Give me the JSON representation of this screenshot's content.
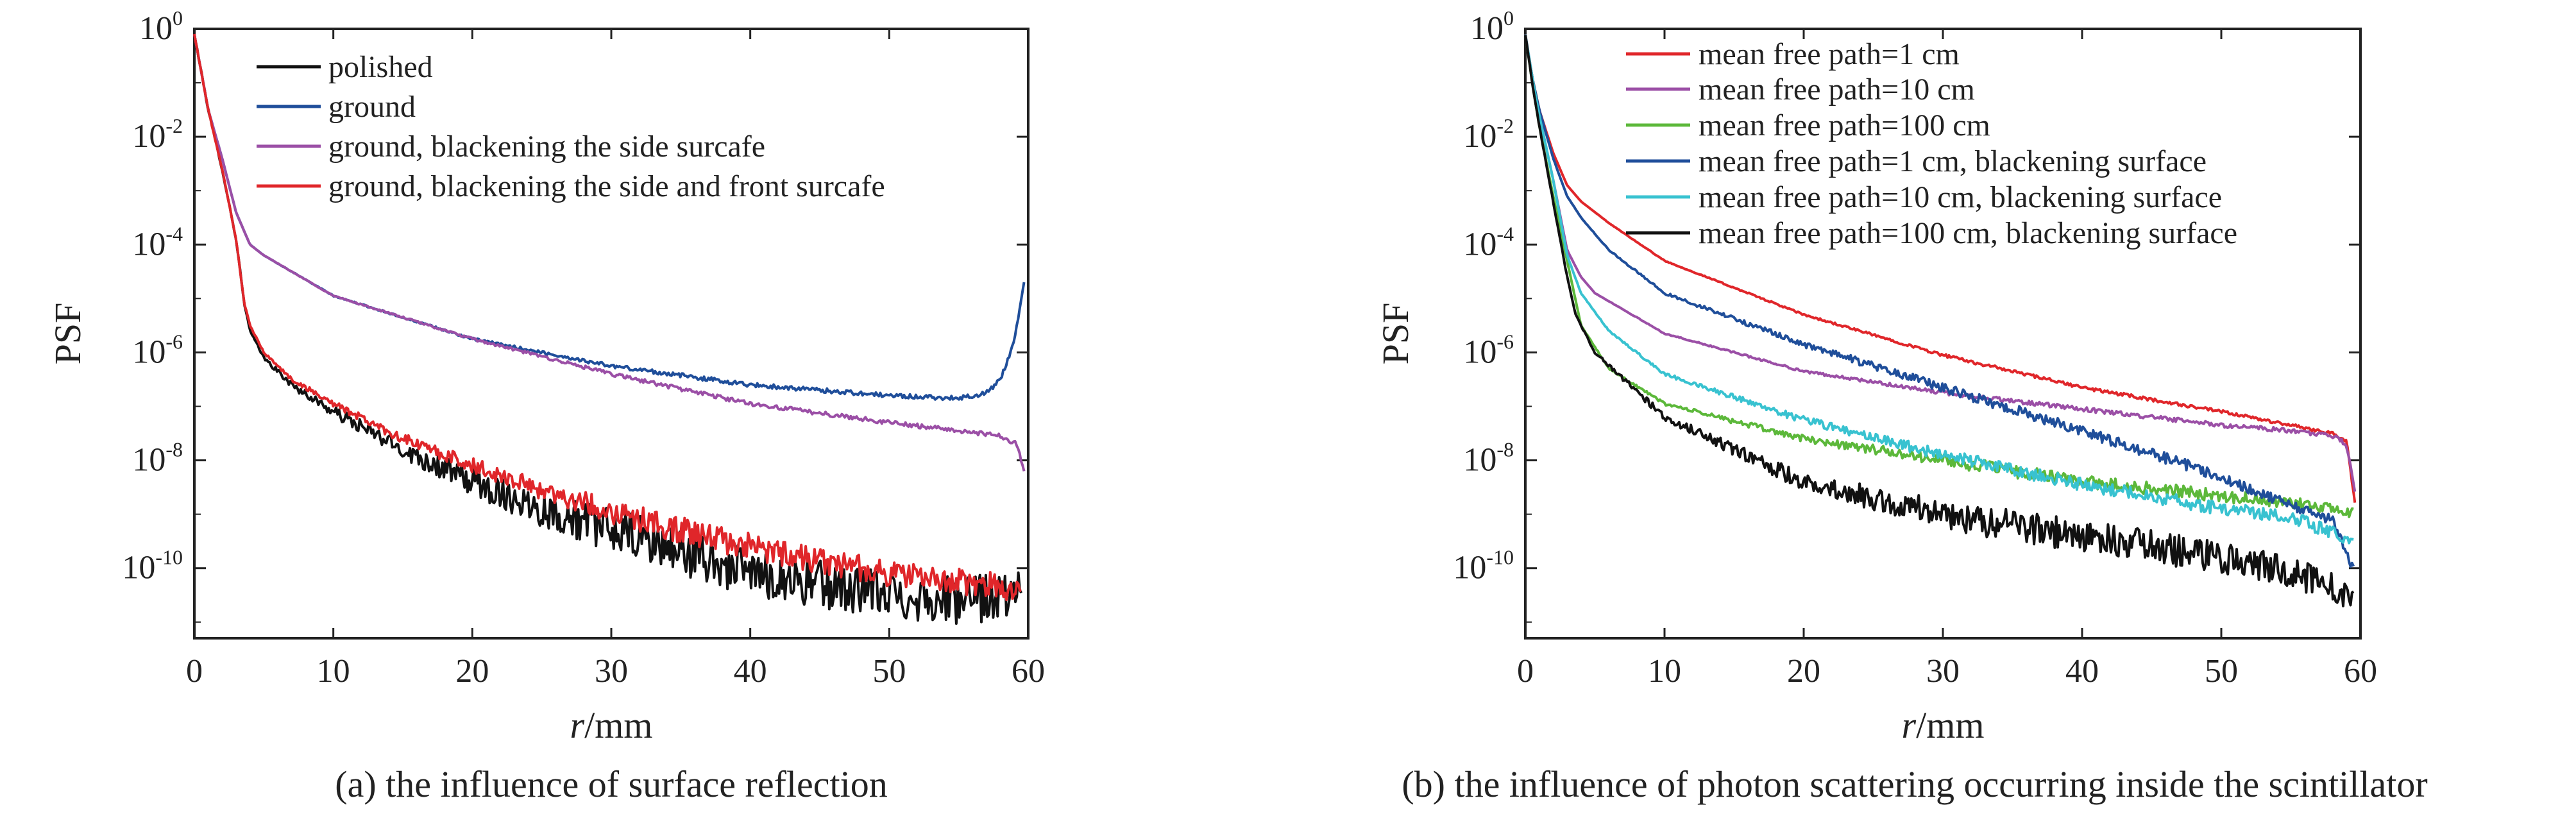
{
  "figure_colors": {
    "black": "#111111",
    "blue": "#1f4e9a",
    "purple": "#9b4fa6",
    "red": "#e0262a",
    "green": "#5cb83a",
    "cyan": "#38c2d0"
  },
  "chart_data": [
    {
      "type": "line",
      "caption": "(a) the influence of surface reflection",
      "xlabel_italic": "r",
      "xlabel_unit": "/mm",
      "ylabel": "PSF",
      "xlim": [
        0,
        60
      ],
      "ylim_log10": [
        -11.3,
        0
      ],
      "y_scale": "log",
      "xticks": [
        "0",
        "10",
        "20",
        "30",
        "40",
        "50",
        "60"
      ],
      "yticks": [
        {
          "base": "10",
          "exp": "0",
          "value": 0
        },
        {
          "base": "10",
          "exp": "-2",
          "value": -2
        },
        {
          "base": "10",
          "exp": "-4",
          "value": -4
        },
        {
          "base": "10",
          "exp": "-6",
          "value": -6
        },
        {
          "base": "10",
          "exp": "-8",
          "value": -8
        },
        {
          "base": "10",
          "exp": "-10",
          "value": -10
        }
      ],
      "legend_position": "top-center",
      "series": [
        {
          "name": "polished",
          "color": "#111111",
          "noise": 0.45,
          "points": [
            [
              0,
              -0.1
            ],
            [
              0.5,
              -0.8
            ],
            [
              1,
              -1.5
            ],
            [
              2,
              -2.6
            ],
            [
              3,
              -3.9
            ],
            [
              3.6,
              -5.1
            ],
            [
              4,
              -5.6
            ],
            [
              5,
              -6.1
            ],
            [
              7,
              -6.6
            ],
            [
              10,
              -7.1
            ],
            [
              15,
              -7.8
            ],
            [
              20,
              -8.4
            ],
            [
              25,
              -8.9
            ],
            [
              30,
              -9.3
            ],
            [
              35,
              -9.7
            ],
            [
              40,
              -10.1
            ],
            [
              45,
              -10.3
            ],
            [
              50,
              -10.5
            ],
            [
              55,
              -10.6
            ],
            [
              59.5,
              -10.5
            ]
          ]
        },
        {
          "name": "ground",
          "color": "#1f4e9a",
          "noise": 0.04,
          "points": [
            [
              0,
              -0.1
            ],
            [
              0.5,
              -0.8
            ],
            [
              1,
              -1.5
            ],
            [
              2,
              -2.4
            ],
            [
              3,
              -3.4
            ],
            [
              4,
              -4.0
            ],
            [
              5,
              -4.2
            ],
            [
              10,
              -4.95
            ],
            [
              20,
              -5.75
            ],
            [
              30,
              -6.25
            ],
            [
              40,
              -6.6
            ],
            [
              50,
              -6.8
            ],
            [
              55,
              -6.85
            ],
            [
              57,
              -6.75
            ],
            [
              58,
              -6.5
            ],
            [
              59,
              -5.8
            ],
            [
              59.7,
              -4.7
            ]
          ]
        },
        {
          "name": "ground, blackening the side surcafe",
          "color": "#9b4fa6",
          "noise": 0.04,
          "points": [
            [
              0,
              -0.1
            ],
            [
              0.5,
              -0.8
            ],
            [
              1,
              -1.5
            ],
            [
              2,
              -2.4
            ],
            [
              3,
              -3.4
            ],
            [
              4,
              -4.0
            ],
            [
              5,
              -4.2
            ],
            [
              10,
              -4.95
            ],
            [
              20,
              -5.75
            ],
            [
              30,
              -6.4
            ],
            [
              40,
              -6.95
            ],
            [
              50,
              -7.3
            ],
            [
              55,
              -7.45
            ],
            [
              58,
              -7.55
            ],
            [
              59.2,
              -7.7
            ],
            [
              59.7,
              -8.2
            ]
          ]
        },
        {
          "name": "ground, blackening the side and front surcafe",
          "color": "#e0262a",
          "noise": 0.25,
          "points": [
            [
              0,
              -0.1
            ],
            [
              0.5,
              -0.8
            ],
            [
              1,
              -1.5
            ],
            [
              2,
              -2.6
            ],
            [
              3,
              -3.9
            ],
            [
              3.6,
              -5.1
            ],
            [
              4,
              -5.5
            ],
            [
              5,
              -6.0
            ],
            [
              7,
              -6.5
            ],
            [
              10,
              -6.95
            ],
            [
              15,
              -7.6
            ],
            [
              20,
              -8.1
            ],
            [
              25,
              -8.55
            ],
            [
              30,
              -8.95
            ],
            [
              35,
              -9.3
            ],
            [
              40,
              -9.6
            ],
            [
              45,
              -9.85
            ],
            [
              50,
              -10.1
            ],
            [
              55,
              -10.25
            ],
            [
              59.5,
              -10.4
            ]
          ]
        }
      ]
    },
    {
      "type": "line",
      "caption": "(b) the influence of photon scattering occurring inside the scintillator",
      "xlabel_italic": "r",
      "xlabel_unit": "/mm",
      "ylabel": "PSF",
      "xlim": [
        0,
        60
      ],
      "ylim_log10": [
        -11.3,
        0
      ],
      "y_scale": "log",
      "xticks": [
        "0",
        "10",
        "20",
        "30",
        "40",
        "50",
        "60"
      ],
      "yticks": [
        {
          "base": "10",
          "exp": "0",
          "value": 0
        },
        {
          "base": "10",
          "exp": "-2",
          "value": -2
        },
        {
          "base": "10",
          "exp": "-4",
          "value": -4
        },
        {
          "base": "10",
          "exp": "-6",
          "value": -6
        },
        {
          "base": "10",
          "exp": "-8",
          "value": -8
        },
        {
          "base": "10",
          "exp": "-10",
          "value": -10
        }
      ],
      "legend_position": "top-center",
      "series": [
        {
          "name": "mean free path=1 cm",
          "color": "#e0262a",
          "noise": 0.03,
          "points": [
            [
              0,
              -0.1
            ],
            [
              0.5,
              -0.9
            ],
            [
              1,
              -1.5
            ],
            [
              2,
              -2.3
            ],
            [
              3,
              -2.9
            ],
            [
              4,
              -3.2
            ],
            [
              6,
              -3.6
            ],
            [
              10,
              -4.3
            ],
            [
              20,
              -5.3
            ],
            [
              30,
              -6.05
            ],
            [
              40,
              -6.65
            ],
            [
              50,
              -7.1
            ],
            [
              55,
              -7.35
            ],
            [
              58,
              -7.5
            ],
            [
              59,
              -7.65
            ],
            [
              59.6,
              -8.8
            ]
          ]
        },
        {
          "name": "mean free path=10 cm",
          "color": "#9b4fa6",
          "noise": 0.04,
          "points": [
            [
              0,
              -0.1
            ],
            [
              0.5,
              -0.9
            ],
            [
              1,
              -1.6
            ],
            [
              2,
              -2.8
            ],
            [
              3,
              -4.1
            ],
            [
              4,
              -4.6
            ],
            [
              5,
              -4.9
            ],
            [
              10,
              -5.65
            ],
            [
              20,
              -6.35
            ],
            [
              30,
              -6.75
            ],
            [
              40,
              -7.05
            ],
            [
              50,
              -7.35
            ],
            [
              55,
              -7.45
            ],
            [
              58,
              -7.55
            ],
            [
              59,
              -7.7
            ],
            [
              59.6,
              -8.6
            ]
          ]
        },
        {
          "name": "mean free path=100 cm",
          "color": "#5cb83a",
          "noise": 0.12,
          "points": [
            [
              0,
              -0.1
            ],
            [
              0.5,
              -1.0
            ],
            [
              1,
              -1.8
            ],
            [
              2,
              -3.1
            ],
            [
              3,
              -4.3
            ],
            [
              4,
              -5.5
            ],
            [
              6,
              -6.3
            ],
            [
              10,
              -6.95
            ],
            [
              20,
              -7.6
            ],
            [
              30,
              -8.0
            ],
            [
              40,
              -8.4
            ],
            [
              50,
              -8.65
            ],
            [
              55,
              -8.8
            ],
            [
              59.5,
              -8.95
            ]
          ]
        },
        {
          "name": "mean free path=1 cm, blackening surface",
          "color": "#1f4e9a",
          "noise": 0.1,
          "points": [
            [
              0,
              -0.1
            ],
            [
              0.5,
              -0.9
            ],
            [
              1,
              -1.5
            ],
            [
              2,
              -2.4
            ],
            [
              3,
              -3.1
            ],
            [
              4,
              -3.5
            ],
            [
              6,
              -4.1
            ],
            [
              10,
              -4.9
            ],
            [
              20,
              -5.85
            ],
            [
              30,
              -6.65
            ],
            [
              40,
              -7.45
            ],
            [
              50,
              -8.3
            ],
            [
              55,
              -8.85
            ],
            [
              58,
              -9.1
            ],
            [
              59.5,
              -10.0
            ]
          ]
        },
        {
          "name": "mean free path=10 cm, blackening surface",
          "color": "#38c2d0",
          "noise": 0.12,
          "points": [
            [
              0,
              -0.1
            ],
            [
              0.5,
              -0.9
            ],
            [
              1,
              -1.6
            ],
            [
              2,
              -2.8
            ],
            [
              3,
              -4.2
            ],
            [
              4,
              -4.9
            ],
            [
              6,
              -5.6
            ],
            [
              10,
              -6.4
            ],
            [
              20,
              -7.25
            ],
            [
              30,
              -7.9
            ],
            [
              40,
              -8.45
            ],
            [
              50,
              -8.9
            ],
            [
              55,
              -9.05
            ],
            [
              59.5,
              -9.5
            ]
          ]
        },
        {
          "name": "mean free path=100 cm, blackening surface",
          "color": "#111111",
          "noise": 0.3,
          "points": [
            [
              0,
              -0.1
            ],
            [
              0.5,
              -1.0
            ],
            [
              1,
              -1.8
            ],
            [
              2,
              -3.2
            ],
            [
              3,
              -4.6
            ],
            [
              3.6,
              -5.3
            ],
            [
              5,
              -6.0
            ],
            [
              10,
              -7.2
            ],
            [
              20,
              -8.4
            ],
            [
              30,
              -9.0
            ],
            [
              40,
              -9.4
            ],
            [
              50,
              -9.8
            ],
            [
              55,
              -10.1
            ],
            [
              59.5,
              -10.5
            ]
          ]
        }
      ]
    }
  ]
}
